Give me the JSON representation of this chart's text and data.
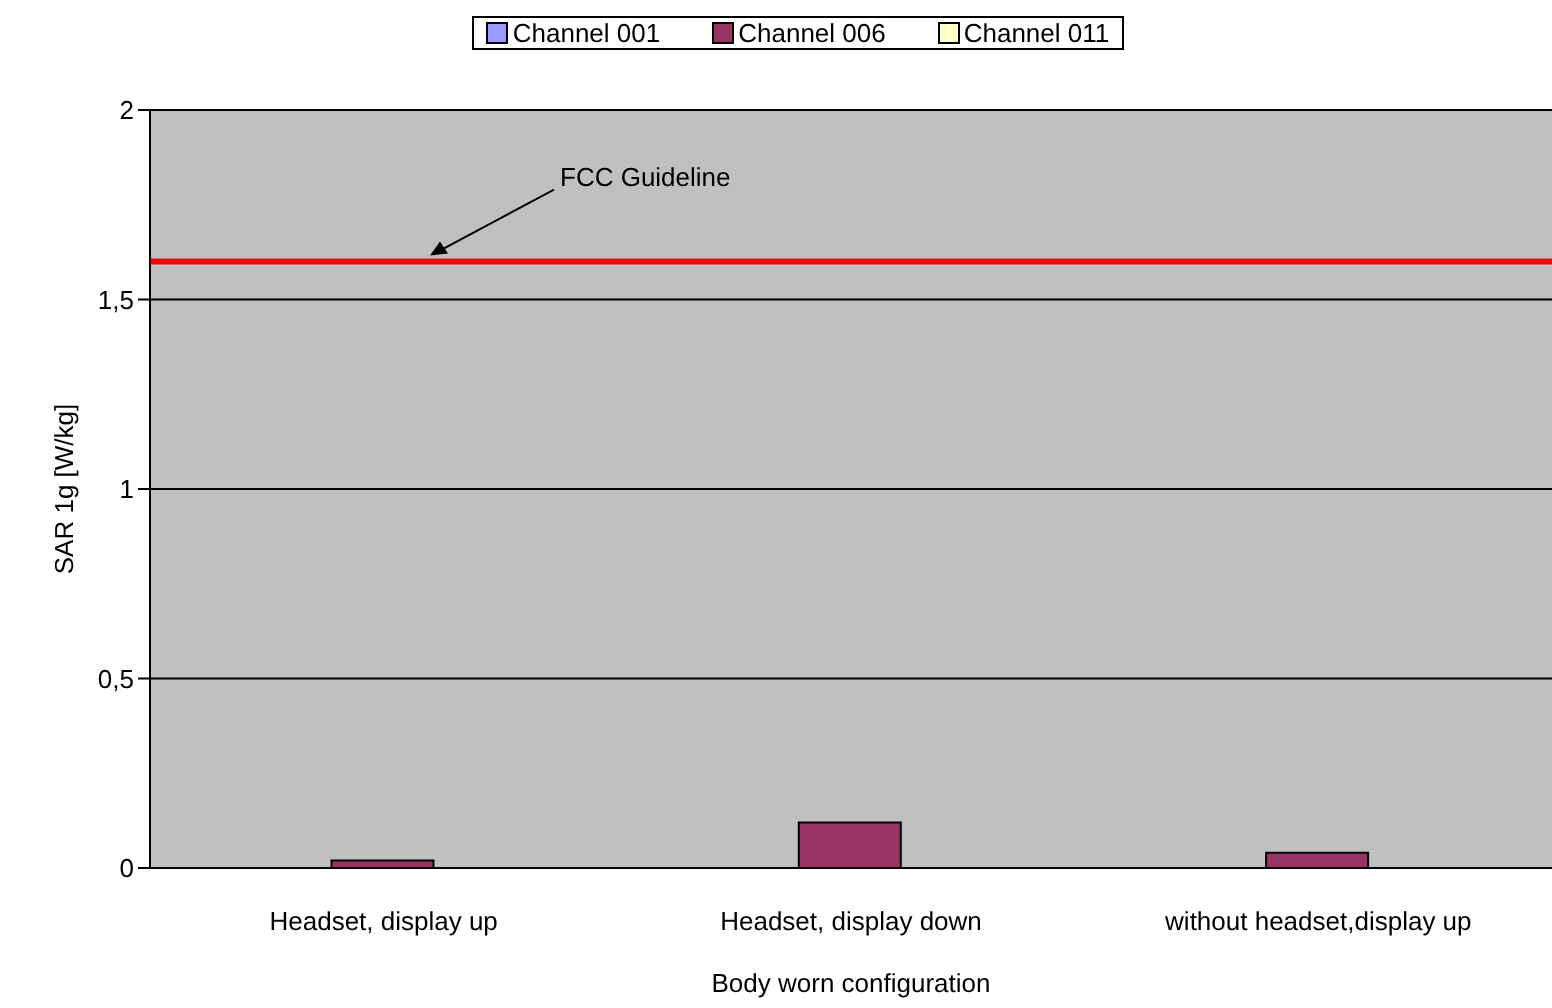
{
  "chart_data": {
    "type": "bar",
    "xlabel": "Body worn configuration",
    "ylabel": "SAR 1g [W/kg]",
    "categories": [
      "Headset, display up",
      "Headset, display down",
      "without headset,display up"
    ],
    "series": [
      {
        "name": "Channel 001",
        "color": "#9999ff",
        "values": [
          null,
          null,
          null
        ]
      },
      {
        "name": "Channel 006",
        "color": "#993366",
        "values": [
          0.02,
          0.12,
          0.04
        ]
      },
      {
        "name": "Channel 011",
        "color": "#ffffcc",
        "values": [
          null,
          null,
          null
        ]
      }
    ],
    "ylim": [
      0,
      2
    ],
    "yticks": [
      {
        "value": 0,
        "label": "0"
      },
      {
        "value": 0.5,
        "label": "0,5"
      },
      {
        "value": 1,
        "label": "1"
      },
      {
        "value": 1.5,
        "label": "1,5"
      },
      {
        "value": 2,
        "label": "2"
      }
    ],
    "ref_lines": [
      {
        "axis": "y",
        "value": 1.6,
        "label": "FCC Guideline",
        "color": "#ff0000"
      }
    ],
    "grid": "y",
    "legend": "top"
  }
}
